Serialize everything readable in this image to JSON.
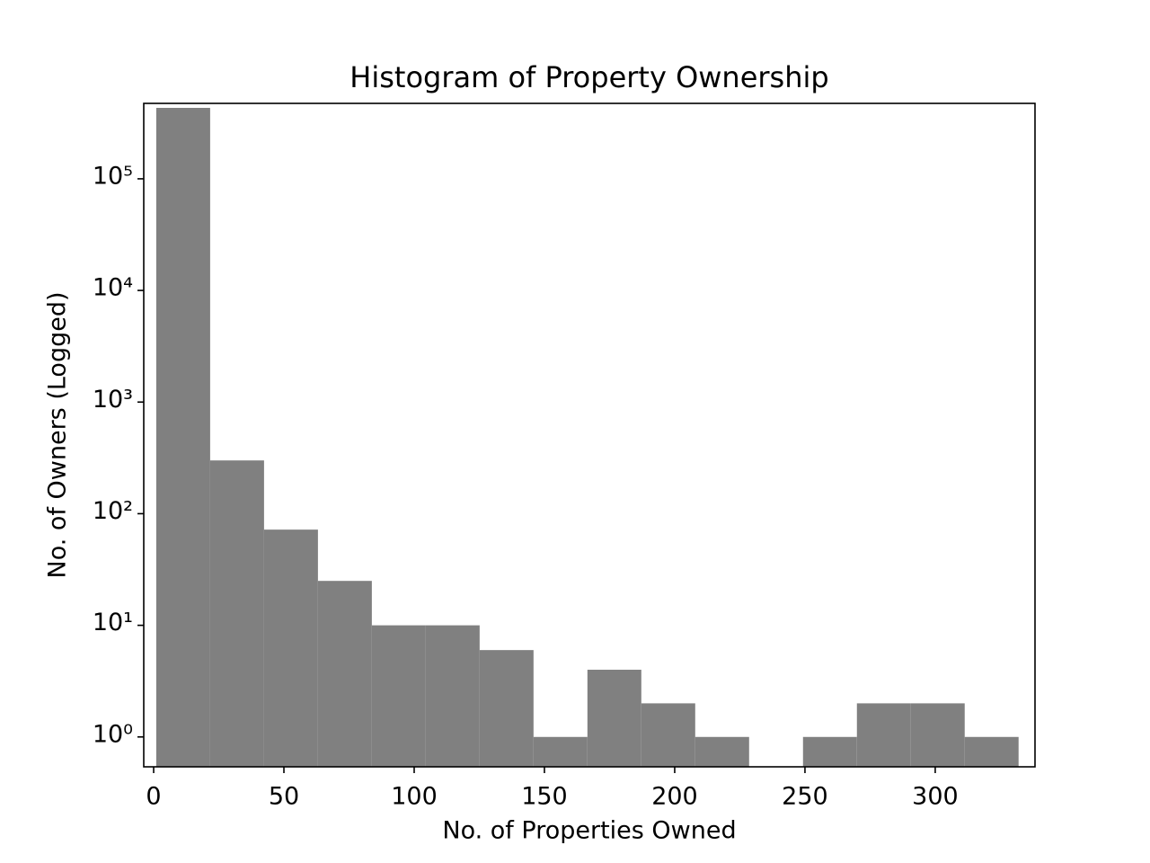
{
  "chart_data": {
    "type": "histogram",
    "title": "Histogram of Property Ownership",
    "x_label": "No. of Properties Owned",
    "y_label": "No. of Owners (Logged)",
    "bins": [
      1,
      21.6875,
      42.375,
      63.0625,
      83.75,
      104.4375,
      125.125,
      145.8125,
      166.5,
      187.1875,
      207.875,
      228.5625,
      249.25,
      269.9375,
      290.625,
      311.3125,
      332
    ],
    "values": [
      432000,
      300,
      72,
      25,
      10,
      10,
      6,
      1,
      4,
      2,
      1,
      0,
      1,
      2,
      2,
      1
    ],
    "color": "#808080",
    "xlim": [
      -3.8,
      338.3
    ],
    "xticks": [
      0,
      50,
      100,
      150,
      200,
      250,
      300
    ],
    "ylim": [
      0.54,
      474000
    ],
    "log_y": true,
    "yticks": [
      {
        "value": 1,
        "label": "10⁰"
      },
      {
        "value": 10,
        "label": "10¹"
      },
      {
        "value": 100,
        "label": "10²"
      },
      {
        "value": 1000,
        "label": "10³"
      },
      {
        "value": 10000,
        "label": "10⁴"
      },
      {
        "value": 100000,
        "label": "10⁵"
      }
    ]
  }
}
